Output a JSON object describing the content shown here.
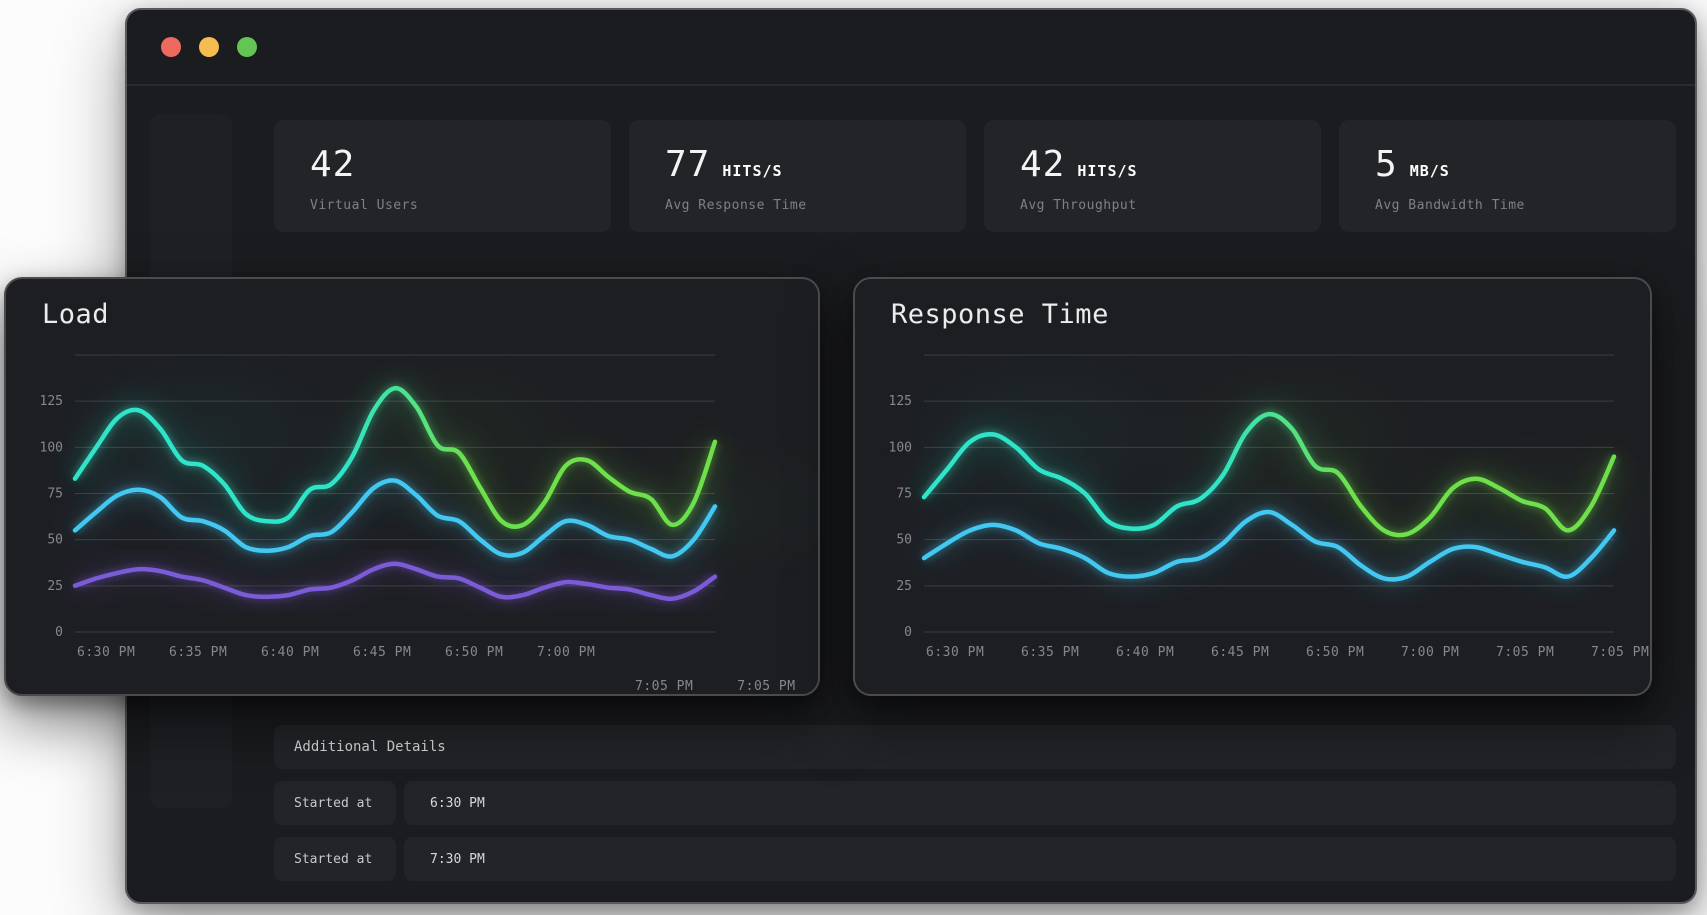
{
  "window": {
    "traffic_lights": [
      {
        "name": "close",
        "color": "#ee6a5f"
      },
      {
        "name": "minimize",
        "color": "#f5bd4f"
      },
      {
        "name": "zoom",
        "color": "#62c554"
      }
    ]
  },
  "stats": [
    {
      "value": "42",
      "unit": "",
      "label": "Virtual Users"
    },
    {
      "value": "77",
      "unit": "HITS/S",
      "label": "Avg Response Time"
    },
    {
      "value": "42",
      "unit": "HITS/S",
      "label": "Avg Throughput"
    },
    {
      "value": "5",
      "unit": "MB/S",
      "label": "Avg Bandwidth Time"
    }
  ],
  "details": {
    "header": "Additional Details",
    "rows": [
      {
        "label": "Started at",
        "value": "6:30 PM"
      },
      {
        "label": "Started at",
        "value": "7:30 PM"
      }
    ]
  },
  "chart_data": [
    {
      "type": "line",
      "title": "Load",
      "xlabel": "",
      "ylabel": "",
      "ylim": [
        0,
        150
      ],
      "yticks": [
        0,
        25,
        50,
        75,
        100,
        125
      ],
      "grid": true,
      "legend_position": "none",
      "x_labels": [
        "6:30 PM",
        "6:35 PM",
        "6:40 PM",
        "6:45 PM",
        "6:50 PM",
        "7:00 PM",
        "7:05 PM",
        "7:05 PM"
      ],
      "x_label_wrap_after": 6,
      "series": [
        {
          "name": "load-high",
          "color_start": "#2fe4c9",
          "color_end": "#6ee04a",
          "values": [
            83,
            100,
            116,
            120,
            110,
            93,
            90,
            80,
            64,
            60,
            62,
            77,
            80,
            95,
            120,
            132,
            122,
            101,
            97,
            78,
            60,
            58,
            70,
            90,
            93,
            84,
            76,
            72,
            58,
            70,
            103
          ]
        },
        {
          "name": "load-mid",
          "color": "#43c8f1",
          "values": [
            55,
            65,
            74,
            77,
            73,
            62,
            60,
            55,
            46,
            44,
            46,
            52,
            54,
            65,
            78,
            82,
            74,
            63,
            60,
            50,
            42,
            43,
            52,
            60,
            58,
            52,
            50,
            45,
            41,
            50,
            68
          ]
        },
        {
          "name": "load-low",
          "color": "#7b5bd6",
          "values": [
            25,
            29,
            32,
            34,
            33,
            30,
            28,
            24,
            20,
            19,
            20,
            23,
            24,
            28,
            34,
            37,
            34,
            30,
            29,
            24,
            19,
            20,
            24,
            27,
            26,
            24,
            23,
            20,
            18,
            22,
            30
          ]
        }
      ]
    },
    {
      "type": "line",
      "title": "Response Time",
      "xlabel": "",
      "ylabel": "",
      "ylim": [
        0,
        150
      ],
      "yticks": [
        0,
        25,
        50,
        75,
        100,
        125
      ],
      "grid": true,
      "legend_position": "none",
      "x_labels": [
        "6:30 PM",
        "6:35 PM",
        "6:40 PM",
        "6:45 PM",
        "6:50 PM",
        "7:00 PM",
        "7:05 PM",
        "7:05 PM"
      ],
      "x_label_wrap_after": 8,
      "series": [
        {
          "name": "response-high",
          "color_start": "#2fe4c9",
          "color_end": "#6ee04a",
          "values": [
            73,
            88,
            103,
            107,
            100,
            88,
            83,
            75,
            60,
            56,
            58,
            68,
            72,
            85,
            108,
            118,
            110,
            90,
            86,
            68,
            55,
            53,
            62,
            78,
            83,
            78,
            71,
            67,
            55,
            68,
            95
          ]
        },
        {
          "name": "response-low",
          "color": "#43c8f1",
          "values": [
            40,
            48,
            55,
            58,
            55,
            48,
            45,
            40,
            32,
            30,
            32,
            38,
            40,
            48,
            60,
            65,
            58,
            49,
            46,
            36,
            29,
            30,
            38,
            45,
            46,
            42,
            38,
            35,
            30,
            40,
            55
          ]
        }
      ]
    }
  ]
}
